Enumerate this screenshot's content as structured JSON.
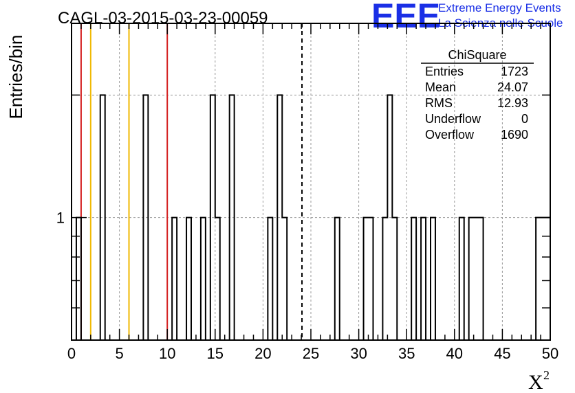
{
  "chart_data": {
    "type": "histogram",
    "title": "CAGL-03-2015-03-23-00059",
    "xlabel": "X",
    "xlabel_superscript": "2",
    "ylabel": "Entries/bin",
    "xlim": [
      0,
      50
    ],
    "ylim": [
      0.5,
      3
    ],
    "y_scale": "log",
    "x_ticks": [
      0,
      5,
      10,
      15,
      20,
      25,
      30,
      35,
      40,
      45,
      50
    ],
    "x_tick_labels": [
      "0",
      "5",
      "10",
      "15",
      "20",
      "25",
      "30",
      "35",
      "40",
      "45",
      "50"
    ],
    "y_tick_labels": [
      {
        "value": 1,
        "label": "1"
      }
    ],
    "grid": true,
    "bin_width": 0.5,
    "bins": [
      {
        "x": 0.5,
        "y": 1
      },
      {
        "x": 3.0,
        "y": 2
      },
      {
        "x": 7.5,
        "y": 2
      },
      {
        "x": 10.5,
        "y": 1
      },
      {
        "x": 12.0,
        "y": 1
      },
      {
        "x": 13.5,
        "y": 1
      },
      {
        "x": 14.5,
        "y": 2
      },
      {
        "x": 15.0,
        "y": 1
      },
      {
        "x": 16.5,
        "y": 2
      },
      {
        "x": 20.5,
        "y": 1
      },
      {
        "x": 21.5,
        "y": 2
      },
      {
        "x": 22.0,
        "y": 1
      },
      {
        "x": 27.5,
        "y": 1
      },
      {
        "x": 30.5,
        "y": 1
      },
      {
        "x": 31.0,
        "y": 1
      },
      {
        "x": 32.5,
        "y": 1
      },
      {
        "x": 33.0,
        "y": 2
      },
      {
        "x": 33.5,
        "y": 1
      },
      {
        "x": 35.5,
        "y": 1
      },
      {
        "x": 36.5,
        "y": 1
      },
      {
        "x": 37.5,
        "y": 1
      },
      {
        "x": 40.5,
        "y": 1
      },
      {
        "x": 41.5,
        "y": 1
      },
      {
        "x": 42.0,
        "y": 1
      },
      {
        "x": 42.5,
        "y": 1
      },
      {
        "x": 48.5,
        "y": 1
      },
      {
        "x": 49.0,
        "y": 1
      },
      {
        "x": 49.5,
        "y": 1
      }
    ],
    "vertical_lines": [
      {
        "x": 1,
        "color": "#d42020",
        "style": "solid"
      },
      {
        "x": 2,
        "color": "#f0b800",
        "style": "solid"
      },
      {
        "x": 6,
        "color": "#f0b800",
        "style": "solid"
      },
      {
        "x": 10,
        "color": "#d42020",
        "style": "solid"
      },
      {
        "x": 24.07,
        "color": "#000000",
        "style": "dashed"
      }
    ],
    "stats_box": {
      "title": "ChiSquare",
      "rows": [
        {
          "label": "Entries",
          "value": "1723"
        },
        {
          "label": "Mean",
          "value": "24.07"
        },
        {
          "label": "RMS",
          "value": "12.93"
        },
        {
          "label": "Underflow",
          "value": "0"
        },
        {
          "label": "Overflow",
          "value": "1690"
        }
      ]
    }
  },
  "logo": {
    "mark": "EEE",
    "line1": "Extreme Energy Events",
    "line2": "La Scienza nelle Scuole",
    "color": "#1a2fe6"
  }
}
